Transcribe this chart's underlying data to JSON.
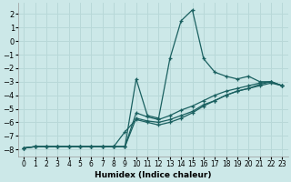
{
  "xlabel": "Humidex (Indice chaleur)",
  "background_color": "#cce8e8",
  "grid_color": "#b8d8d8",
  "line_color": "#1a6060",
  "xlim": [
    -0.5,
    23.5
  ],
  "ylim": [
    -8.5,
    2.8
  ],
  "xticks": [
    0,
    1,
    2,
    3,
    4,
    5,
    6,
    7,
    8,
    9,
    10,
    11,
    12,
    13,
    14,
    15,
    16,
    17,
    18,
    19,
    20,
    21,
    22,
    23
  ],
  "yticks": [
    -8,
    -7,
    -6,
    -5,
    -4,
    -3,
    -2,
    -1,
    0,
    1,
    2
  ],
  "series": [
    [
      -7.9,
      -7.8,
      -7.8,
      -7.8,
      -7.8,
      -7.8,
      -7.8,
      -7.8,
      -7.8,
      -7.8,
      -2.8,
      -5.5,
      -5.7,
      -1.3,
      1.5,
      2.3,
      -1.3,
      -2.3,
      -2.6,
      -2.8,
      -2.6,
      -3.0,
      -3.0,
      -3.3
    ],
    [
      -7.9,
      -7.8,
      -7.8,
      -7.8,
      -7.8,
      -7.8,
      -7.8,
      -7.8,
      -7.8,
      -7.8,
      -5.3,
      -5.6,
      -5.8,
      -5.5,
      -5.1,
      -4.8,
      -4.4,
      -4.0,
      -3.7,
      -3.5,
      -3.3,
      -3.1,
      -3.0,
      -3.3
    ],
    [
      -7.9,
      -7.8,
      -7.8,
      -7.8,
      -7.8,
      -7.8,
      -7.8,
      -7.8,
      -7.8,
      -7.8,
      -5.7,
      -5.9,
      -6.0,
      -5.8,
      -5.5,
      -5.2,
      -4.7,
      -4.4,
      -4.0,
      -3.7,
      -3.5,
      -3.3,
      -3.1,
      -3.3
    ],
    [
      -7.9,
      -7.8,
      -7.8,
      -7.8,
      -7.8,
      -7.8,
      -7.8,
      -7.8,
      -7.8,
      -6.7,
      -5.8,
      -6.0,
      -6.2,
      -6.0,
      -5.7,
      -5.3,
      -4.8,
      -4.4,
      -4.0,
      -3.7,
      -3.5,
      -3.2,
      -3.0,
      -3.3
    ]
  ],
  "x": [
    0,
    1,
    2,
    3,
    4,
    5,
    6,
    7,
    8,
    9,
    10,
    11,
    12,
    13,
    14,
    15,
    16,
    17,
    18,
    19,
    20,
    21,
    22,
    23
  ]
}
